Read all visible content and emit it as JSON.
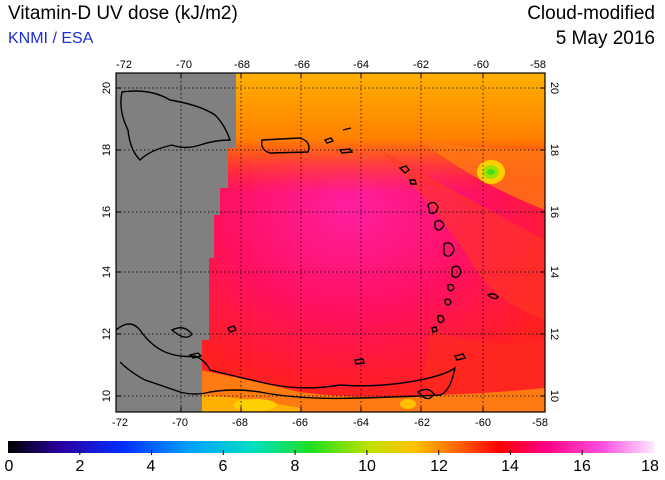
{
  "header": {
    "title": "Vitamin-D UV dose (kJ/m2)",
    "credit": "KNMI / ESA",
    "mode": "Cloud-modified",
    "date": "5 May 2016"
  },
  "map": {
    "lon_ticks": [
      "-72",
      "-70",
      "-68",
      "-66",
      "-64",
      "-62",
      "-60",
      "-58"
    ],
    "lat_ticks": [
      "20",
      "18",
      "16",
      "14",
      "12",
      "10"
    ],
    "no_data_color": "#808080",
    "grid": "dotted"
  },
  "colorbar": {
    "labels": [
      "0",
      "2",
      "4",
      "6",
      "8",
      "10",
      "12",
      "14",
      "16",
      "18"
    ],
    "colors": [
      "#000000",
      "#2a00a0",
      "#0030ff",
      "#00a0ff",
      "#00e0c0",
      "#20e020",
      "#c0e000",
      "#ffc000",
      "#ff6000",
      "#ff0000",
      "#ff0080",
      "#ff50e0",
      "#ffe0ff"
    ]
  }
}
